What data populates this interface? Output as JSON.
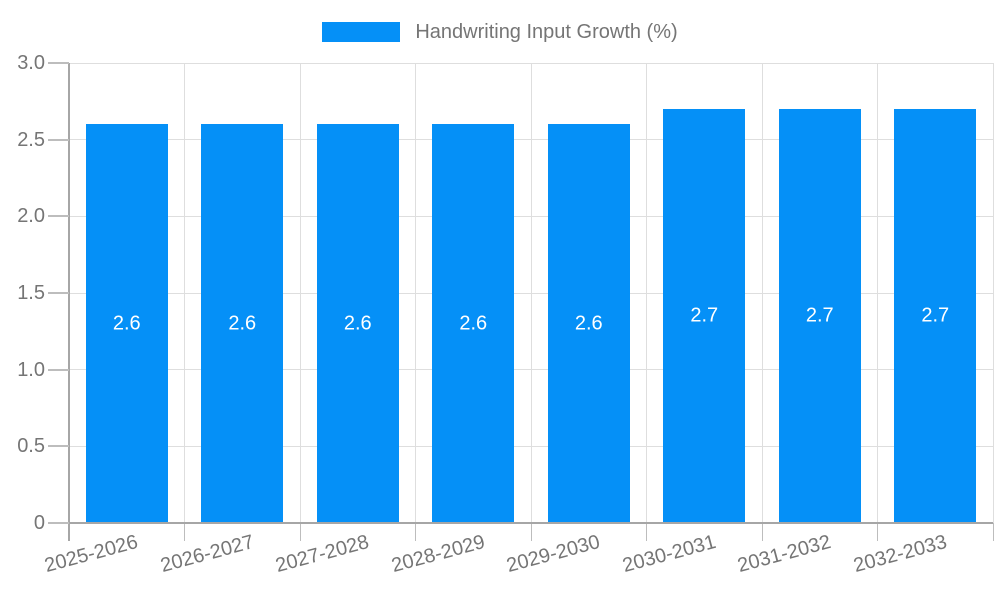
{
  "legend": {
    "label": "Handwriting Input Growth (%)"
  },
  "chart_data": {
    "type": "bar",
    "title": "Handwriting Input Growth (%)",
    "categories": [
      "2025-2026",
      "2026-2027",
      "2027-2028",
      "2028-2029",
      "2029-2030",
      "2030-2031",
      "2031-2032",
      "2032-2033"
    ],
    "values": [
      2.6,
      2.6,
      2.6,
      2.6,
      2.6,
      2.7,
      2.7,
      2.7
    ],
    "bar_labels": [
      "2.6",
      "2.6",
      "2.6",
      "2.6",
      "2.6",
      "2.7",
      "2.7",
      "2.7"
    ],
    "xlabel": "",
    "ylabel": "",
    "ylim": [
      0,
      3
    ],
    "yticks": [
      {
        "label": "0",
        "value": 0
      },
      {
        "label": "0.5",
        "value": 0.5
      },
      {
        "label": "1.0",
        "value": 1.0
      },
      {
        "label": "1.5",
        "value": 1.5
      },
      {
        "label": "2.0",
        "value": 2.0
      },
      {
        "label": "2.5",
        "value": 2.5
      },
      {
        "label": "3.0",
        "value": 3.0
      }
    ],
    "grid": true,
    "legend_position": "top-center",
    "x_tick_rotation_deg": -15,
    "colors": {
      "bar": "#0590F7",
      "bar_value_label": "#FFFFFF",
      "gridline": "#DEDEDE",
      "axis_line": "#A6A6A6",
      "tick_mark": "#BDBDBD",
      "tick_text": "#757575",
      "legend_text": "#757575"
    }
  }
}
